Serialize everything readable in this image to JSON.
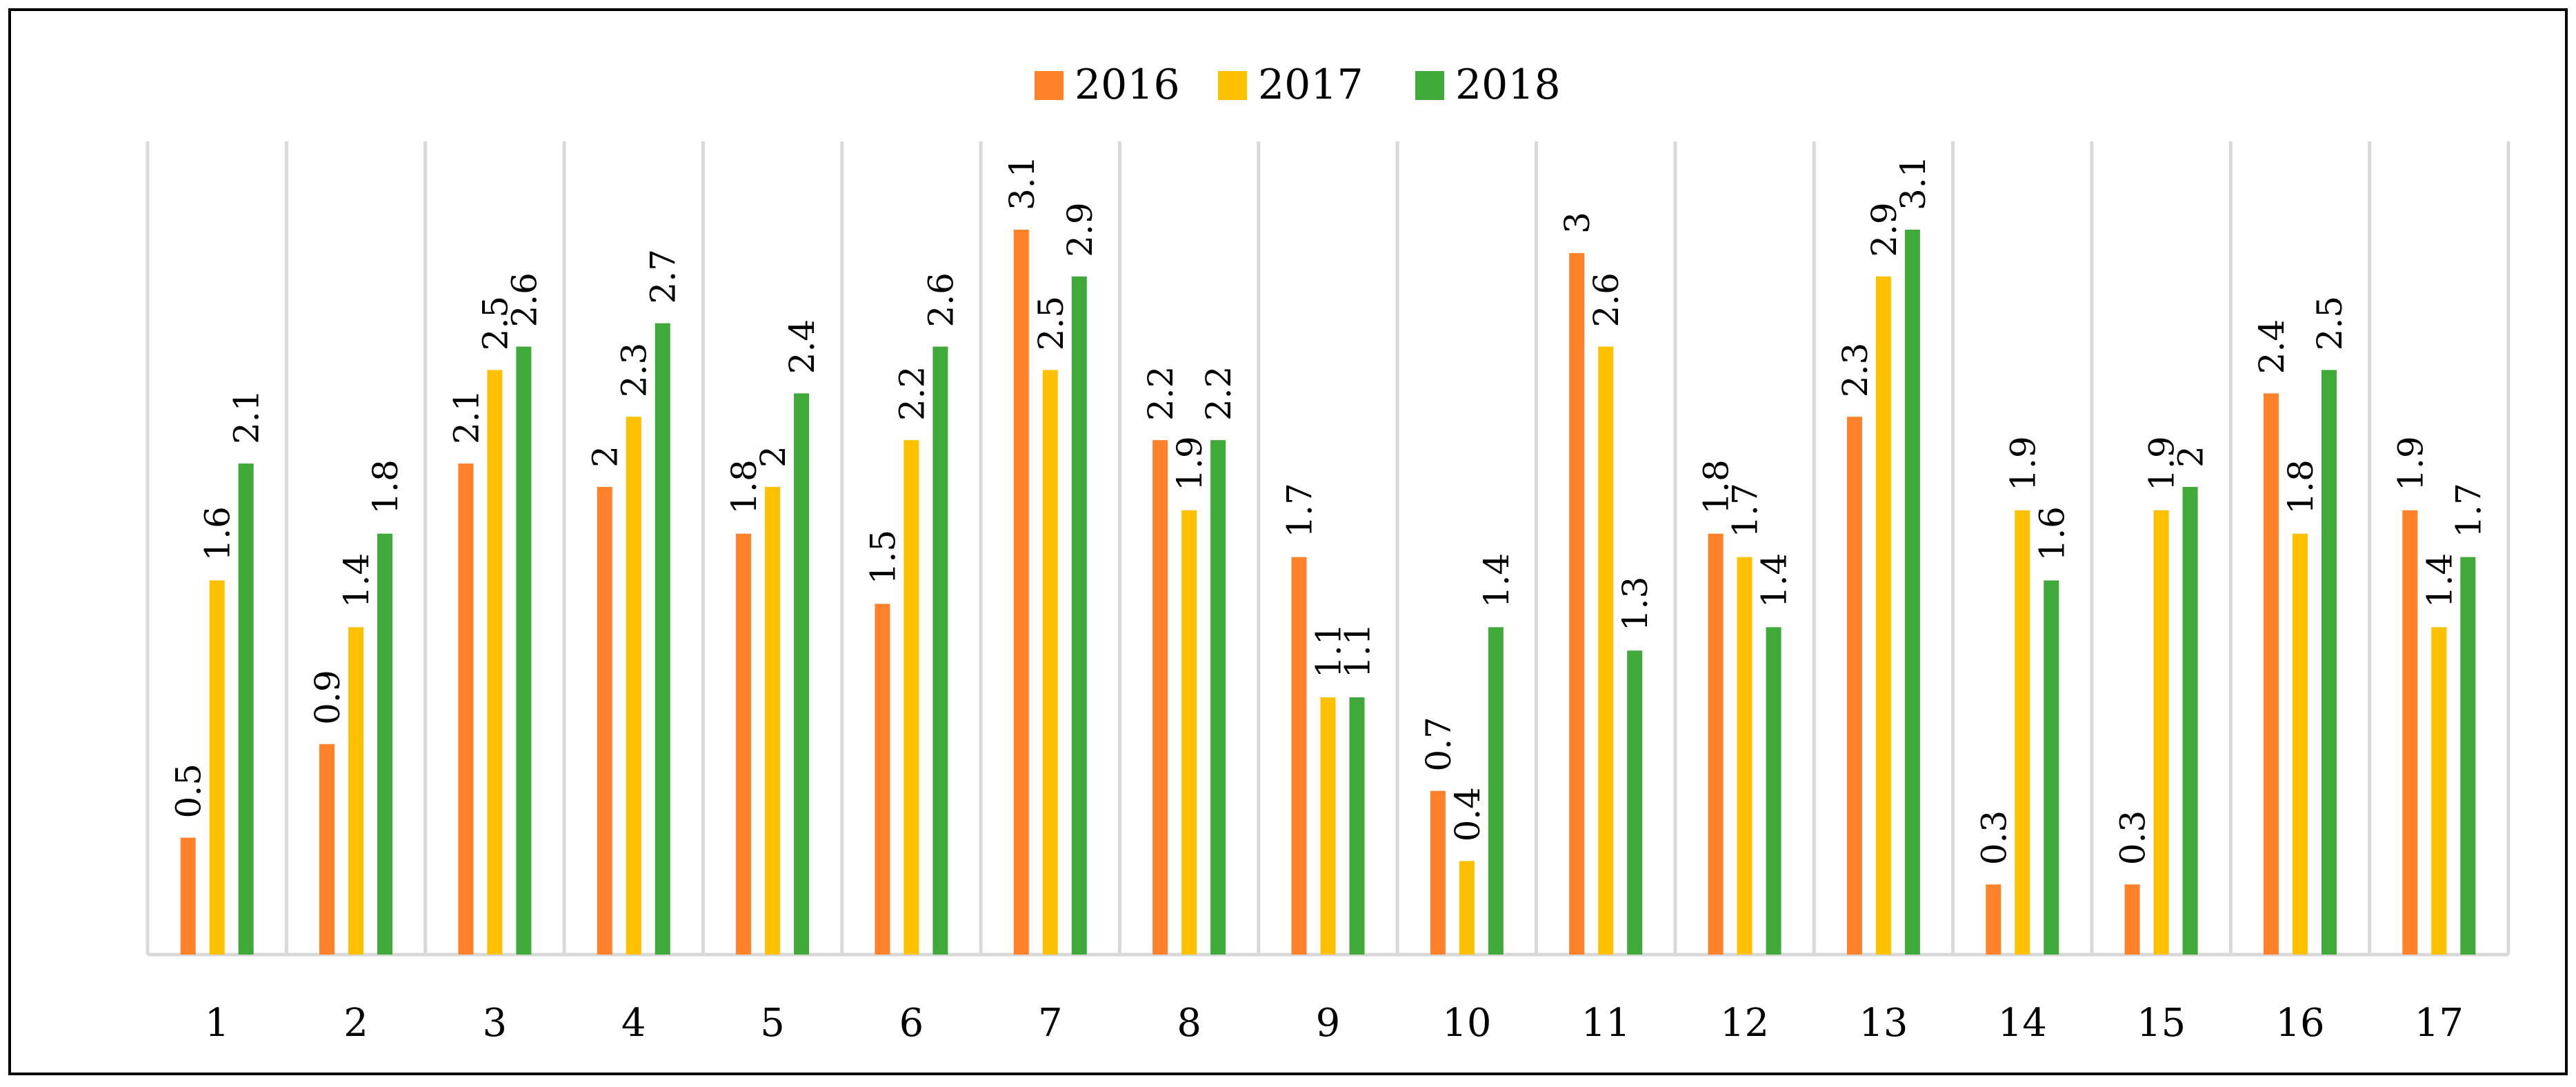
{
  "chart_data": {
    "type": "bar",
    "title": "",
    "xlabel": "",
    "ylabel": "",
    "categories": [
      "1",
      "2",
      "3",
      "4",
      "5",
      "6",
      "7",
      "8",
      "9",
      "10",
      "11",
      "12",
      "13",
      "14",
      "15",
      "16",
      "17"
    ],
    "ylim": [
      0,
      3.3
    ],
    "grid": "vertical",
    "legend_position": "top-center",
    "series": [
      {
        "name": "2016",
        "color": "#FF822A",
        "values": [
          0.5,
          0.9,
          2.1,
          2,
          1.8,
          1.5,
          3.1,
          2.2,
          1.7,
          0.7,
          3,
          1.8,
          2.3,
          0.3,
          0.3,
          2.4,
          1.9
        ]
      },
      {
        "name": "2017",
        "color": "#FFC000",
        "values": [
          1.6,
          1.4,
          2.5,
          2.3,
          2,
          2.2,
          2.5,
          1.9,
          1.1,
          0.4,
          2.6,
          1.7,
          2.9,
          1.9,
          1.9,
          1.8,
          1.4
        ]
      },
      {
        "name": "2018",
        "color": "#3FAA3A",
        "values": [
          2.1,
          1.8,
          2.6,
          2.7,
          2.4,
          2.6,
          2.9,
          2.2,
          1.1,
          1.4,
          1.3,
          1.4,
          3.1,
          1.6,
          2,
          2.5,
          1.7
        ]
      }
    ]
  }
}
